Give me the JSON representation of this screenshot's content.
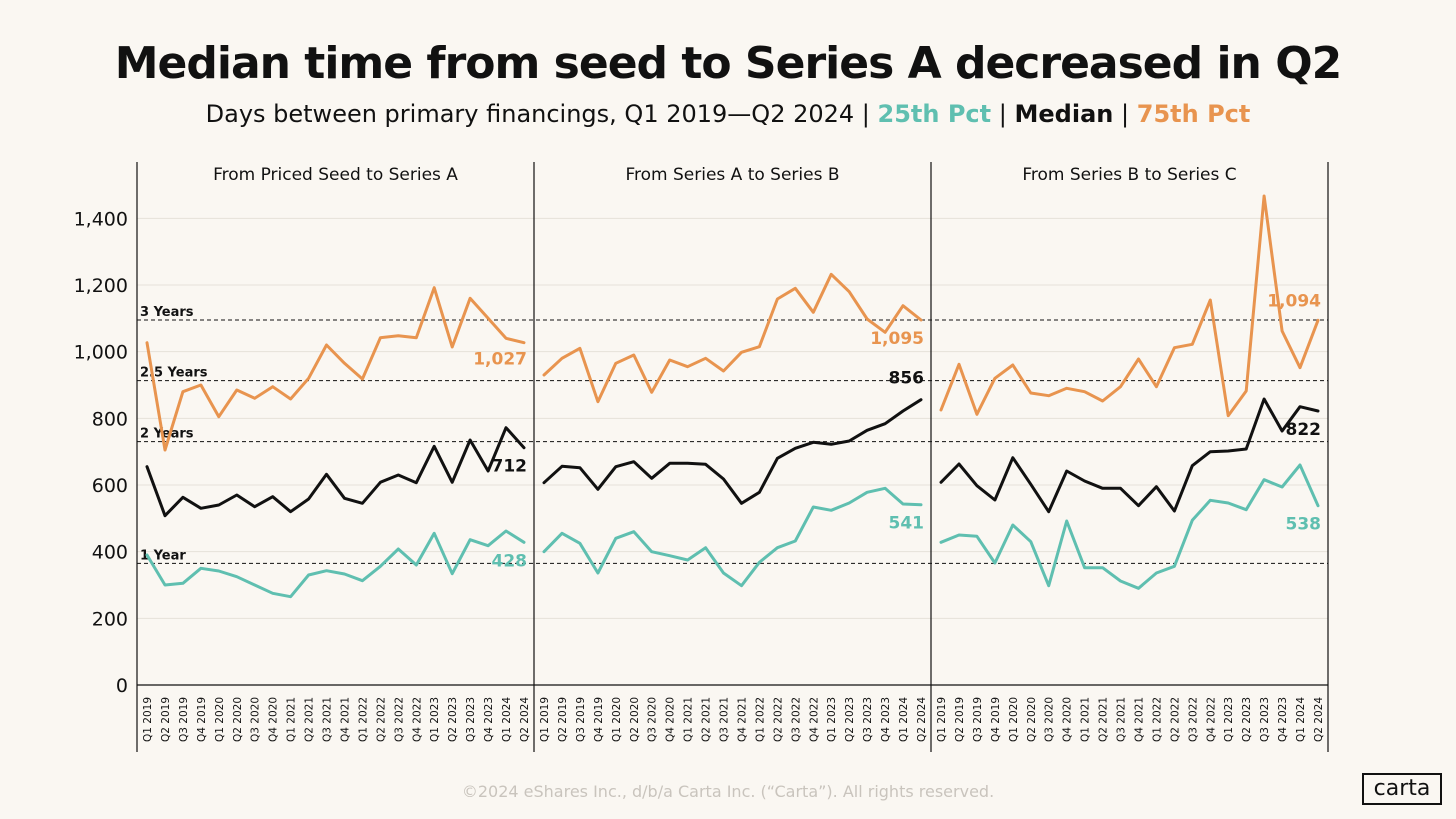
{
  "title": "Median time from seed to Series A decreased in Q2",
  "subtitle": {
    "prefix": "Days between primary financings, Q1 2019—Q2 2024 |",
    "p25_label": "25th Pct",
    "sep1": "|",
    "median_label": "Median",
    "sep2": "|",
    "p75_label": "75th Pct"
  },
  "footer": "©2024 eShares Inc., d/b/a Carta Inc. (“Carta”). All rights reserved.",
  "logo": "carta",
  "colors": {
    "p25": "#5fbfb0",
    "median": "#111111",
    "p75": "#e8944f",
    "background": "#faf7f2"
  },
  "chart_data": {
    "type": "line",
    "ylim": [
      0,
      1500
    ],
    "y_ticks": [
      0,
      200,
      400,
      600,
      800,
      1000,
      1200,
      1400
    ],
    "y_tick_labels": [
      "0",
      "200",
      "400",
      "600",
      "800",
      "1,000",
      "1,200",
      "1,400"
    ],
    "categories": [
      "Q1 2019",
      "Q2 2019",
      "Q3 2019",
      "Q4 2019",
      "Q1 2020",
      "Q2 2020",
      "Q3 2020",
      "Q4 2020",
      "Q1 2021",
      "Q2 2021",
      "Q3 2021",
      "Q4 2021",
      "Q1 2022",
      "Q2 2022",
      "Q3 2022",
      "Q4 2022",
      "Q1 2023",
      "Q2 2023",
      "Q3 2023",
      "Q4 2023",
      "Q1 2024",
      "Q2 2024"
    ],
    "reference_lines": [
      {
        "label": "1 Year",
        "value": 365
      },
      {
        "label": "2 Years",
        "value": 730
      },
      {
        "label": "2.5 Years",
        "value": 913
      },
      {
        "label": "3 Years",
        "value": 1095
      }
    ],
    "panels": [
      {
        "title": "From Priced Seed to Series A",
        "series": [
          {
            "name": "75th Pct",
            "values": [
              1027,
              705,
              880,
              900,
              805,
              885,
              860,
              895,
              858,
              920,
              1020,
              965,
              918,
              1042,
              1048,
              1042,
              1192,
              1014,
              1160,
              1100,
              1040,
              1027
            ],
            "end_label": "1,027"
          },
          {
            "name": "Median",
            "values": [
              655,
              508,
              563,
              530,
              540,
              570,
              535,
              565,
              520,
              558,
              632,
              560,
              545,
              608,
              630,
              607,
              716,
              608,
              735,
              642,
              772,
              712
            ],
            "end_label": "712"
          },
          {
            "name": "25th Pct",
            "values": [
              390,
              300,
              305,
              350,
              342,
              325,
              300,
              275,
              265,
              330,
              343,
              333,
              313,
              356,
              408,
              360,
              455,
              334,
              436,
              418,
              462,
              428
            ],
            "end_label": "428"
          }
        ]
      },
      {
        "title": "From Series A to Series B",
        "series": [
          {
            "name": "75th Pct",
            "values": [
              930,
              980,
              1010,
              850,
              965,
              990,
              878,
              975,
              955,
              980,
              942,
              998,
              1015,
              1158,
              1190,
              1118,
              1232,
              1180,
              1098,
              1058,
              1138,
              1095
            ],
            "end_label": "1,095"
          },
          {
            "name": "Median",
            "values": [
              607,
              656,
              652,
              587,
              655,
              670,
              620,
              665,
              665,
              662,
              618,
              545,
              578,
              680,
              710,
              728,
              722,
              732,
              764,
              784,
              822,
              856
            ],
            "end_label": "856"
          },
          {
            "name": "25th Pct",
            "values": [
              400,
              455,
              425,
              336,
              440,
              460,
              400,
              388,
              375,
              412,
              336,
              298,
              368,
              412,
              432,
              534,
              524,
              546,
              578,
              590,
              543,
              541
            ],
            "end_label": "541"
          }
        ]
      },
      {
        "title": "From Series B to Series C",
        "series": [
          {
            "name": "75th Pct",
            "values": [
              825,
              962,
              812,
              920,
              960,
              876,
              868,
              890,
              880,
              852,
              895,
              978,
              895,
              1012,
              1022,
              1155,
              808,
              882,
              1467,
              1062,
              952,
              1094
            ],
            "end_label": "1,094"
          },
          {
            "name": "Median",
            "values": [
              608,
              663,
              598,
              555,
              682,
              602,
              520,
              642,
              612,
              590,
              590,
              538,
              595,
              522,
              658,
              700,
              702,
              708,
              858,
              762,
              835,
              822
            ],
            "end_label": "822"
          },
          {
            "name": "25th Pct",
            "values": [
              428,
              450,
              446,
              366,
              480,
              430,
              298,
              492,
              352,
              352,
              312,
              290,
              336,
              356,
              494,
              554,
              546,
              526,
              616,
              594,
              660,
              538
            ],
            "end_label": "538"
          }
        ]
      }
    ]
  }
}
